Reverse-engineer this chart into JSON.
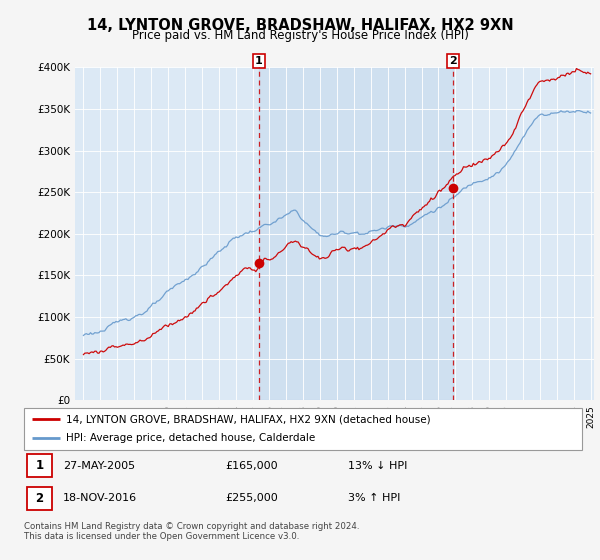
{
  "title": "14, LYNTON GROVE, BRADSHAW, HALIFAX, HX2 9XN",
  "subtitle": "Price paid vs. HM Land Registry's House Price Index (HPI)",
  "legend_line1": "14, LYNTON GROVE, BRADSHAW, HALIFAX, HX2 9XN (detached house)",
  "legend_line2": "HPI: Average price, detached house, Calderdale",
  "sale1_date": "27-MAY-2005",
  "sale1_price": 165000,
  "sale1_pct": "13% ↓ HPI",
  "sale2_date": "18-NOV-2016",
  "sale2_price": 255000,
  "sale2_pct": "3% ↑ HPI",
  "footer": "Contains HM Land Registry data © Crown copyright and database right 2024.\nThis data is licensed under the Open Government Licence v3.0.",
  "line_color_red": "#cc0000",
  "line_color_blue": "#6699cc",
  "bg_color": "#dce9f5",
  "shade_color": "#ccdff0",
  "grid_color": "#bbccdd",
  "fig_bg": "#f5f5f5",
  "ylim_max": 400000,
  "sale1_year": 2005.38,
  "sale2_year": 2016.88,
  "xmin": 1995,
  "xmax": 2025
}
